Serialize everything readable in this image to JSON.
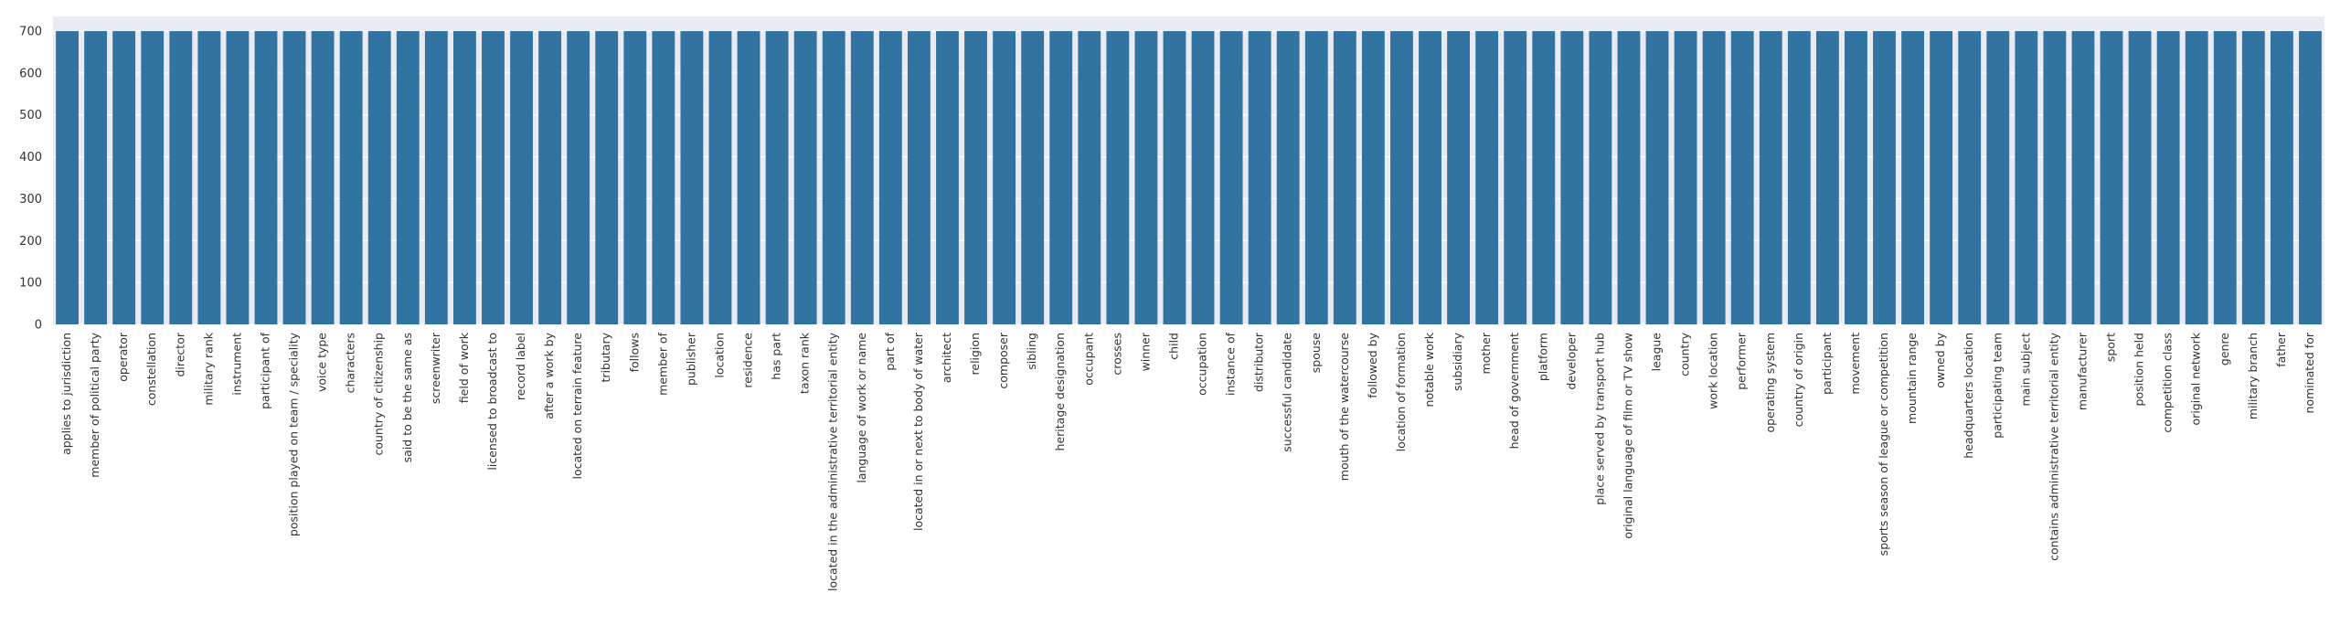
{
  "chart_data": {
    "type": "bar",
    "title": "",
    "xlabel": "",
    "ylabel": "",
    "ylim": [
      0,
      735
    ],
    "yticks": [
      0,
      100,
      200,
      300,
      400,
      500,
      600,
      700
    ],
    "grid": true,
    "colors": {
      "bar": "#3274a1",
      "background": "#eaeaf2",
      "grid": "#ffffff"
    },
    "categories": [
      "applies to jurisdiction",
      "member of political party",
      "operator",
      "constellation",
      "director",
      "military rank",
      "instrument",
      "participant of",
      "position played on team / speciality",
      "voice type",
      "characters",
      "country of citizenship",
      "said to be the same as",
      "screenwriter",
      "field of work",
      "licensed to broadcast to",
      "record label",
      "after a work by",
      "located on terrain feature",
      "tributary",
      "follows",
      "member of",
      "publisher",
      "location",
      "residence",
      "has part",
      "taxon rank",
      "located in the administrative territorial entity",
      "language of work or name",
      "part of",
      "located in or next to body of water",
      "architect",
      "religion",
      "composer",
      "sibling",
      "heritage designation",
      "occupant",
      "crosses",
      "winner",
      "child",
      "occupation",
      "instance of",
      "distributor",
      "successful candidate",
      "spouse",
      "mouth of the watercourse",
      "followed by",
      "location of formation",
      "notable work",
      "subsidiary",
      "mother",
      "head of government",
      "platform",
      "developer",
      "place served by transport hub",
      "original language of film or TV show",
      "league",
      "country",
      "work location",
      "performer",
      "operating system",
      "country of origin",
      "participant",
      "movement",
      "sports season of league or competition",
      "mountain range",
      "owned by",
      "headquarters location",
      "participating team",
      "main subject",
      "contains administrative territorial entity",
      "manufacturer",
      "sport",
      "position held",
      "competition class",
      "original network",
      "genre",
      "military branch",
      "father",
      "nominated for"
    ],
    "values": [
      700,
      700,
      700,
      700,
      700,
      700,
      700,
      700,
      700,
      700,
      700,
      700,
      700,
      700,
      700,
      700,
      700,
      700,
      700,
      700,
      700,
      700,
      700,
      700,
      700,
      700,
      700,
      700,
      700,
      700,
      700,
      700,
      700,
      700,
      700,
      700,
      700,
      700,
      700,
      700,
      700,
      700,
      700,
      700,
      700,
      700,
      700,
      700,
      700,
      700,
      700,
      700,
      700,
      700,
      700,
      700,
      700,
      700,
      700,
      700,
      700,
      700,
      700,
      700,
      700,
      700,
      700,
      700,
      700,
      700,
      700,
      700,
      700,
      700,
      700,
      700,
      700,
      700,
      700,
      700
    ]
  }
}
